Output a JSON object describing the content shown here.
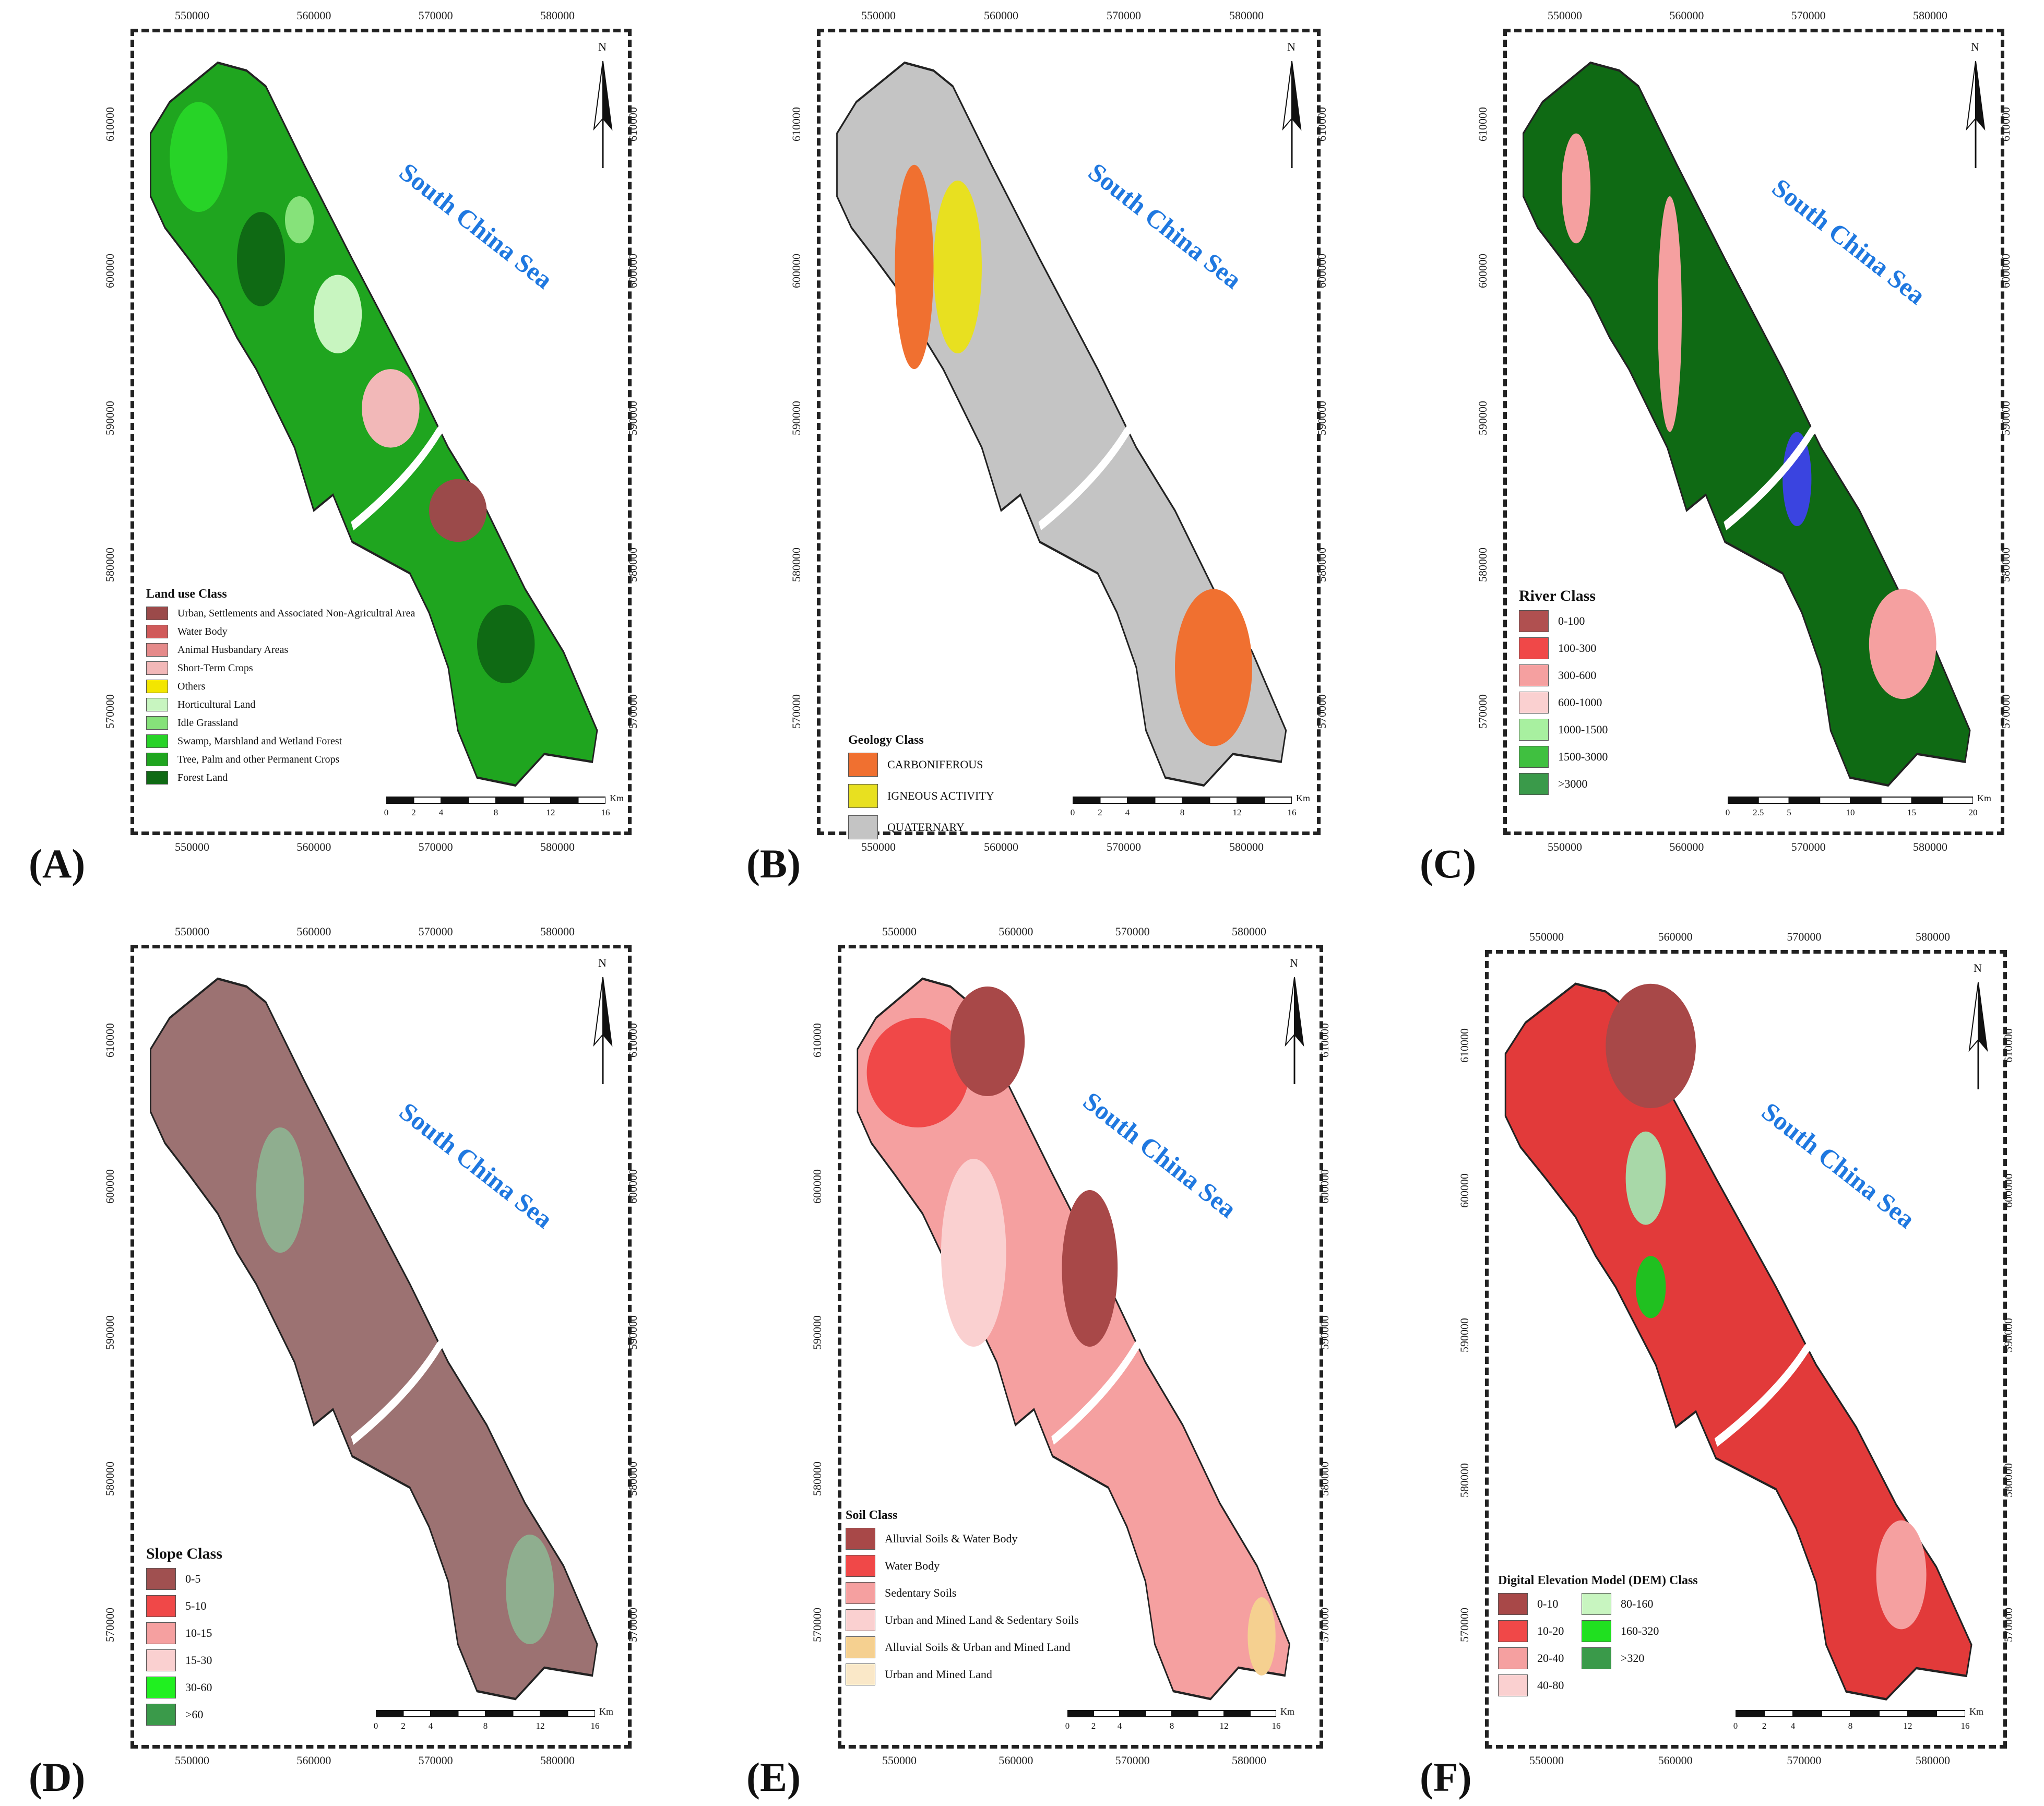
{
  "panels": [
    {
      "id": "A",
      "label": "(A)",
      "sea_label": "South China Sea",
      "x_ticks": [
        "550000",
        "560000",
        "570000",
        "580000"
      ],
      "y_ticks": [
        "610000",
        "600000",
        "590000",
        "580000",
        "570000"
      ],
      "north": "N",
      "legend": {
        "title": "Land use Class",
        "items": [
          {
            "label": "Urban, Settlements and Associated Non-Agricultral Area",
            "color": "#9b4a4a"
          },
          {
            "label": "Water Body",
            "color": "#d05a5a"
          },
          {
            "label": "Animal Husbandary Areas",
            "color": "#e58a8a"
          },
          {
            "label": "Short-Term Crops",
            "color": "#f2b8b8"
          },
          {
            "label": "Others",
            "color": "#f3e600"
          },
          {
            "label": "Horticultural Land",
            "color": "#c8f5c0"
          },
          {
            "label": "Idle Grassland",
            "color": "#86e27a"
          },
          {
            "label": "Swamp, Marshland and Wetland Forest",
            "color": "#27d327"
          },
          {
            "label": "Tree, Palm and other Permanent Crops",
            "color": "#1fa51f"
          },
          {
            "label": "Forest Land",
            "color": "#0f6a14"
          }
        ]
      },
      "scale": {
        "ticks": [
          "0",
          "2",
          "4",
          "8",
          "12",
          "16"
        ],
        "unit": "Km"
      }
    },
    {
      "id": "B",
      "label": "(B)",
      "sea_label": "South China Sea",
      "x_ticks": [
        "550000",
        "560000",
        "570000",
        "580000"
      ],
      "y_ticks": [
        "610000",
        "600000",
        "590000",
        "580000",
        "570000"
      ],
      "north": "N",
      "legend": {
        "title": "Geology Class",
        "items": [
          {
            "label": "CARBONIFEROUS",
            "color": "#f07030"
          },
          {
            "label": "IGNEOUS ACTIVITY",
            "color": "#e8e020"
          },
          {
            "label": "QUATERNARY",
            "color": "#c4c4c4"
          }
        ]
      },
      "scale": {
        "ticks": [
          "0",
          "2",
          "4",
          "8",
          "12",
          "16"
        ],
        "unit": "Km"
      }
    },
    {
      "id": "C",
      "label": "(C)",
      "sea_label": "South China Sea",
      "x_ticks": [
        "550000",
        "560000",
        "570000",
        "580000"
      ],
      "y_ticks": [
        "610000",
        "600000",
        "590000",
        "580000",
        "570000"
      ],
      "north": "N",
      "legend": {
        "title": "River Class",
        "items": [
          {
            "label": "0-100",
            "color": "#b05050"
          },
          {
            "label": "100-300",
            "color": "#f04848"
          },
          {
            "label": "300-600",
            "color": "#f5a0a0"
          },
          {
            "label": "600-1000",
            "color": "#fad0d0"
          },
          {
            "label": "1000-1500",
            "color": "#a8f0a0"
          },
          {
            "label": "1500-3000",
            "color": "#40c040"
          },
          {
            "label": ">3000",
            "color": "#3a9a4a"
          }
        ]
      },
      "scale": {
        "ticks": [
          "0",
          "2.5",
          "5",
          "10",
          "15",
          "20"
        ],
        "unit": "Km"
      }
    },
    {
      "id": "D",
      "label": "(D)",
      "sea_label": "South China Sea",
      "x_ticks": [
        "550000",
        "560000",
        "570000",
        "580000"
      ],
      "y_ticks": [
        "610000",
        "600000",
        "590000",
        "580000",
        "570000"
      ],
      "north": "N",
      "legend": {
        "title": "Slope Class",
        "items": [
          {
            "label": "0-5",
            "color": "#a05050"
          },
          {
            "label": "5-10",
            "color": "#f04848"
          },
          {
            "label": "10-15",
            "color": "#f5a0a0"
          },
          {
            "label": "15-30",
            "color": "#fad0d0"
          },
          {
            "label": "30-60",
            "color": "#20f020"
          },
          {
            "label": ">60",
            "color": "#3a9a4a"
          }
        ]
      },
      "scale": {
        "ticks": [
          "0",
          "2",
          "4",
          "8",
          "12",
          "16"
        ],
        "unit": "Km"
      }
    },
    {
      "id": "E",
      "label": "(E)",
      "sea_label": "South China Sea",
      "x_ticks": [
        "550000",
        "560000",
        "570000",
        "580000"
      ],
      "y_ticks": [
        "610000",
        "600000",
        "590000",
        "580000",
        "570000"
      ],
      "north": "N",
      "legend": {
        "title": "Soil Class",
        "items": [
          {
            "label": "Alluvial Soils & Water Body",
            "color": "#a84848"
          },
          {
            "label": "Water Body",
            "color": "#f04848"
          },
          {
            "label": "Sedentary Soils",
            "color": "#f5a0a0"
          },
          {
            "label": "Urban and Mined Land & Sedentary Soils",
            "color": "#fad0d0"
          },
          {
            "label": "Alluvial Soils & Urban and Mined Land",
            "color": "#f5d090"
          },
          {
            "label": "Urban and Mined Land",
            "color": "#fae8c8"
          }
        ]
      },
      "scale": {
        "ticks": [
          "0",
          "2",
          "4",
          "8",
          "12",
          "16"
        ],
        "unit": "Km"
      }
    },
    {
      "id": "F",
      "label": "(F)",
      "sea_label": "South China Sea",
      "x_ticks": [
        "550000",
        "560000",
        "570000",
        "580000"
      ],
      "y_ticks": [
        "610000",
        "600000",
        "590000",
        "580000",
        "570000"
      ],
      "north": "N",
      "legend": {
        "title": "Digital Elevation Model (DEM) Class",
        "items": [
          {
            "label": "0-10",
            "color": "#a84848"
          },
          {
            "label": "80-160",
            "color": "#c8f5c0"
          },
          {
            "label": "10-20",
            "color": "#f04848"
          },
          {
            "label": "160-320",
            "color": "#20e020"
          },
          {
            "label": "20-40",
            "color": "#f5a0a0"
          },
          {
            "label": ">320",
            "color": "#3a9a4a"
          },
          {
            "label": "40-80",
            "color": "#fad0d0"
          }
        ]
      },
      "scale": {
        "ticks": [
          "0",
          "2",
          "4",
          "8",
          "12",
          "16"
        ],
        "unit": "Km"
      }
    }
  ]
}
